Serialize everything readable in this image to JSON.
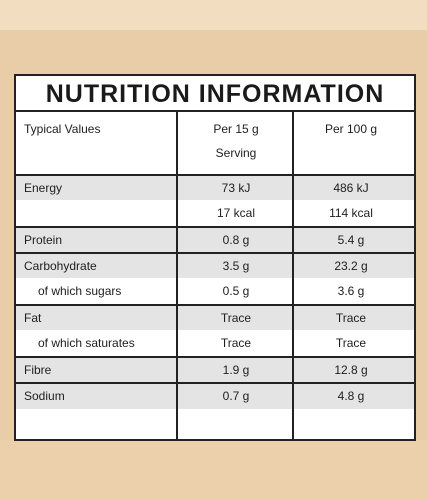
{
  "label": {
    "title": "NUTRITION INFORMATION",
    "header": {
      "col1": "Typical Values",
      "col2_line1": "Per  15 g",
      "col2_line2": "Serving",
      "col3": "Per 100 g"
    },
    "rows": [
      {
        "label": "Energy",
        "mid": "73  kJ",
        "right": "486  kJ"
      },
      {
        "label": "",
        "mid": "17  kcal",
        "right": "114  kcal"
      },
      {
        "label": "Protein",
        "mid": "0.8  g",
        "right": "5.4  g"
      },
      {
        "label": "Carbohydrate",
        "mid": "3.5  g",
        "right": "23.2  g"
      },
      {
        "label": "of which sugars",
        "mid": "0.5  g",
        "right": "3.6  g"
      },
      {
        "label": "Fat",
        "mid": "Trace",
        "right": "Trace"
      },
      {
        "label": "of which saturates",
        "mid": "Trace",
        "right": "Trace"
      },
      {
        "label": "Fibre",
        "mid": "1.9  g",
        "right": "12.8  g"
      },
      {
        "label": "Sodium",
        "mid": "0.7  g",
        "right": "4.8  g"
      }
    ]
  }
}
